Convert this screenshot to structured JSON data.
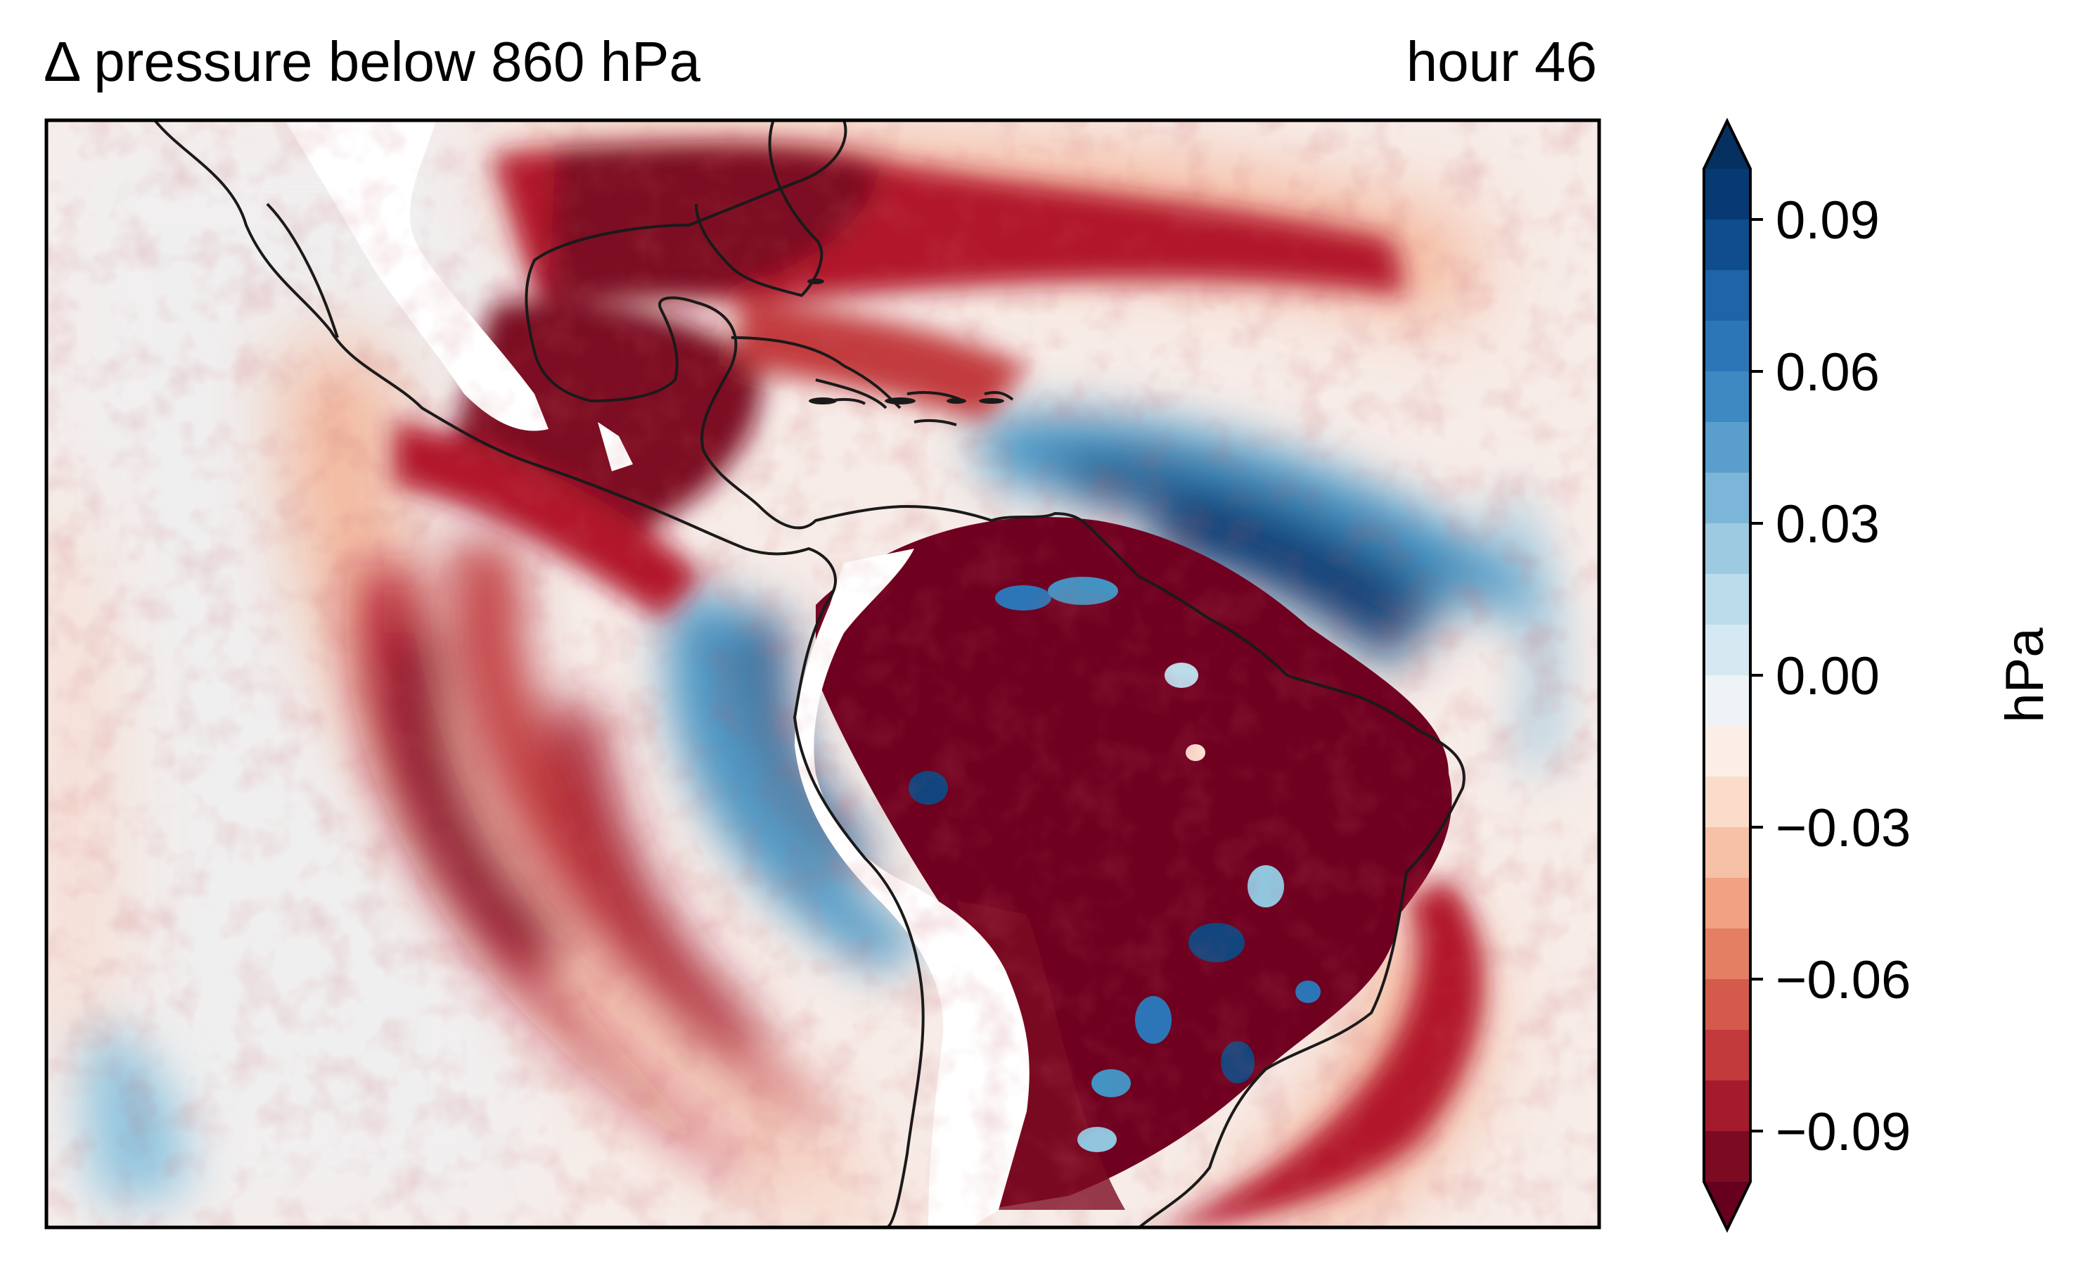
{
  "title_left": "Δ pressure below 860 hPa",
  "title_right": "hour 46",
  "colorbar": {
    "unit_label": "hPa",
    "tick_labels": [
      "0.09",
      "0.06",
      "0.03",
      "0.00",
      "−0.03",
      "−0.06",
      "−0.09"
    ],
    "tick_values": [
      0.09,
      0.06,
      0.03,
      0.0,
      -0.03,
      -0.06,
      -0.09
    ],
    "range": [
      -0.1,
      0.1
    ],
    "extend": "both",
    "colormap": "RdBu_r reversed (blue positive, red negative)",
    "levels": 20,
    "colors_top_to_bottom": [
      "#073a72",
      "#0f4d8d",
      "#1f64a8",
      "#2c76b8",
      "#3d89c2",
      "#5a9ecd",
      "#7cb5d8",
      "#9ecae1",
      "#bcdcec",
      "#d6e8f2",
      "#edf3f7",
      "#fbeee7",
      "#fbdccb",
      "#f6c1a6",
      "#f0a283",
      "#e47f64",
      "#d45b4c",
      "#c23a3c",
      "#a41b2e",
      "#7c0b22"
    ],
    "extend_top_color": "#05305f",
    "extend_bottom_color": "#67001f"
  },
  "map": {
    "region": "Eastern Pacific, Central America, Caribbean and South America",
    "field_colors": {
      "strong_negative": "#6f0020",
      "negative": "#b2182b",
      "weak_negative": "#f4a582",
      "near_zero_neg": "#fbe3d6",
      "near_zero_pos": "#e8f1f7",
      "weak_positive": "#92c5de",
      "positive": "#4393c3",
      "strong_positive": "#12457e",
      "masked": "#ffffff",
      "coastline": "#1a1a1a"
    }
  }
}
